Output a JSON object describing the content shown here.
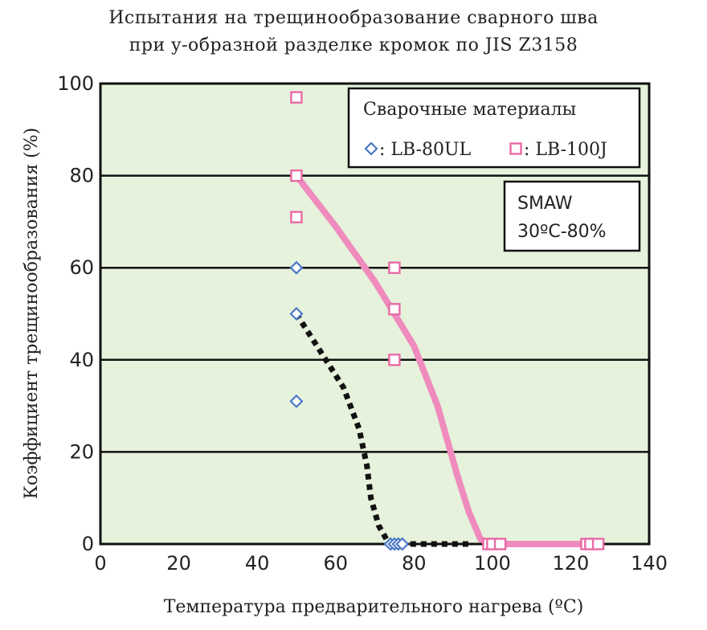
{
  "colors": {
    "plot_bg": "#e6f2dc",
    "grid": "#111111",
    "lb80ul": "#4a78c6",
    "lb100j": "#e96aa6",
    "curve_pink": "#ef8bbd",
    "curve_black": "#111111"
  },
  "chart_data": {
    "type": "scatter",
    "title": "Испытания на трещинообразование сварного шва",
    "subtitle": "при y-образной разделке кромок по JIS Z3158",
    "xlabel": "Температура предварительного нагрева (ºС)",
    "ylabel": "Коэффициент трещинообразования (%)",
    "xlim": [
      0,
      140
    ],
    "ylim": [
      0,
      100
    ],
    "xticks": [
      0,
      20,
      40,
      60,
      80,
      100,
      120,
      140
    ],
    "yticks": [
      0,
      20,
      40,
      60,
      80,
      100
    ],
    "grid": "horizontal",
    "legend": {
      "title": "Сварочные материалы",
      "placement": "top-right",
      "entries": [
        {
          "marker": "diamond",
          "label": "LB-80UL"
        },
        {
          "marker": "square",
          "label": "LB-100J"
        }
      ]
    },
    "note": [
      "SMAW",
      "30ºС-80%"
    ],
    "series": [
      {
        "name": "LB-80UL",
        "marker": "diamond",
        "points": [
          [
            50,
            60
          ],
          [
            50,
            50
          ],
          [
            50,
            31
          ],
          [
            74,
            0
          ],
          [
            75,
            0
          ],
          [
            76,
            0
          ],
          [
            77,
            0
          ]
        ]
      },
      {
        "name": "LB-100J",
        "marker": "square",
        "points": [
          [
            50,
            97
          ],
          [
            50,
            80
          ],
          [
            50,
            71
          ],
          [
            75,
            60
          ],
          [
            75,
            51
          ],
          [
            75,
            40
          ],
          [
            99,
            0
          ],
          [
            100,
            0
          ],
          [
            102,
            0
          ],
          [
            124,
            0
          ],
          [
            125,
            0
          ],
          [
            127,
            0
          ]
        ]
      }
    ],
    "trend_lines": [
      {
        "for": "LB-80UL",
        "style": "dotted",
        "points": [
          [
            50,
            50
          ],
          [
            56,
            42
          ],
          [
            62,
            34
          ],
          [
            66,
            25
          ],
          [
            68,
            17
          ],
          [
            69,
            10
          ],
          [
            71,
            4
          ],
          [
            73,
            1
          ],
          [
            75,
            0
          ],
          [
            80,
            0
          ],
          [
            95,
            0
          ]
        ]
      },
      {
        "for": "LB-100J",
        "style": "solid",
        "points": [
          [
            50,
            80
          ],
          [
            60,
            69
          ],
          [
            70,
            57
          ],
          [
            80,
            43
          ],
          [
            86,
            30
          ],
          [
            91,
            15
          ],
          [
            94,
            7
          ],
          [
            97,
            1
          ],
          [
            100,
            0
          ],
          [
            125,
            0
          ]
        ]
      }
    ]
  }
}
